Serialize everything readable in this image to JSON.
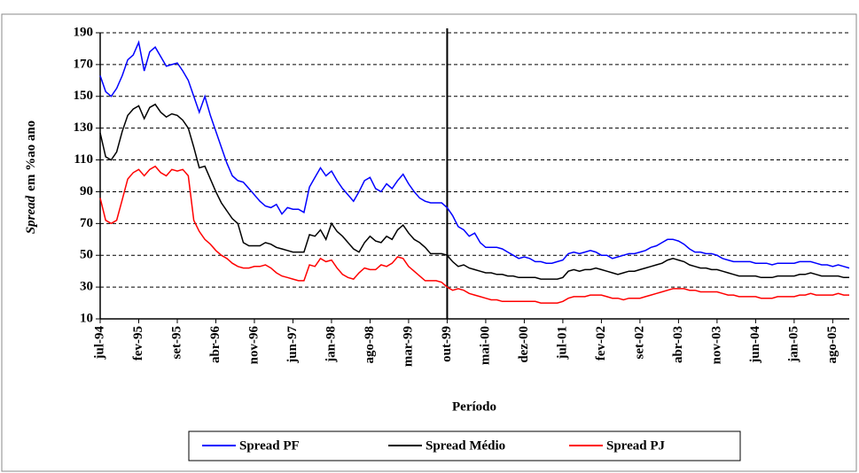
{
  "chart_data": {
    "type": "line",
    "y_label_italic": "Spread",
    "y_label": "em %ao ano",
    "x_label": "Período",
    "categories": [
      "jul-94",
      null,
      null,
      null,
      null,
      null,
      null,
      "fev-95",
      null,
      null,
      null,
      null,
      null,
      null,
      "set-95",
      null,
      null,
      null,
      null,
      null,
      null,
      "abr-96",
      null,
      null,
      null,
      null,
      null,
      null,
      "nov-96",
      null,
      null,
      null,
      null,
      null,
      null,
      "jun-97",
      null,
      null,
      null,
      null,
      null,
      null,
      "jan-98",
      null,
      null,
      null,
      null,
      null,
      null,
      "ago-98",
      null,
      null,
      null,
      null,
      null,
      null,
      "mar-99",
      null,
      null,
      null,
      null,
      null,
      null,
      "out-99",
      null,
      null,
      null,
      null,
      null,
      null,
      "mai-00",
      null,
      null,
      null,
      null,
      null,
      null,
      "dez-00",
      null,
      null,
      null,
      null,
      null,
      null,
      "jul-01",
      null,
      null,
      null,
      null,
      null,
      null,
      "fev-02",
      null,
      null,
      null,
      null,
      null,
      null,
      "set-02",
      null,
      null,
      null,
      null,
      null,
      null,
      "abr-03",
      null,
      null,
      null,
      null,
      null,
      null,
      "nov-03",
      null,
      null,
      null,
      null,
      null,
      null,
      "jun-04",
      null,
      null,
      null,
      null,
      null,
      null,
      "jan-05",
      null,
      null,
      null,
      null,
      null,
      null,
      "ago-05",
      null,
      null,
      null
    ],
    "series": [
      {
        "name": "Spread PF",
        "color": "#0000ff",
        "values": [
          163,
          153,
          150,
          155,
          163,
          173,
          176,
          184,
          166,
          178,
          181,
          175,
          169,
          170,
          171,
          166,
          160,
          150,
          140,
          150,
          138,
          128,
          118,
          108,
          100,
          97,
          96,
          92,
          88,
          84,
          81,
          80,
          82,
          76,
          80,
          79,
          79,
          77,
          93,
          99,
          105,
          100,
          103,
          97,
          92,
          88,
          84,
          90,
          97,
          99,
          92,
          90,
          95,
          92,
          97,
          101,
          95,
          90,
          86,
          84,
          83,
          83,
          83,
          80,
          75,
          68,
          66,
          62,
          64,
          58,
          55,
          55,
          55,
          54,
          52,
          50,
          48,
          49,
          48,
          46,
          46,
          45,
          45,
          46,
          47,
          51,
          52,
          51,
          52,
          53,
          52,
          50,
          50,
          48,
          49,
          50,
          51,
          51,
          52,
          53,
          55,
          56,
          58,
          60,
          60,
          59,
          57,
          54,
          52,
          52,
          51,
          51,
          50,
          48,
          47,
          46,
          46,
          46,
          46,
          45,
          45,
          45,
          44,
          45,
          45,
          45,
          45,
          46,
          46,
          46,
          45,
          44,
          44,
          43,
          44,
          43,
          42
        ]
      },
      {
        "name": "Spread Médio",
        "color": "#000000",
        "values": [
          127,
          112,
          110,
          115,
          128,
          138,
          142,
          144,
          136,
          143,
          145,
          140,
          137,
          139,
          138,
          135,
          130,
          118,
          105,
          106,
          98,
          90,
          83,
          78,
          73,
          70,
          58,
          56,
          56,
          56,
          58,
          57,
          55,
          54,
          53,
          52,
          52,
          52,
          63,
          62,
          66,
          60,
          70,
          65,
          62,
          58,
          54,
          52,
          58,
          62,
          59,
          58,
          62,
          60,
          66,
          69,
          64,
          60,
          58,
          55,
          51,
          51,
          51,
          50,
          46,
          43,
          44,
          42,
          41,
          40,
          39,
          39,
          38,
          38,
          37,
          37,
          36,
          36,
          36,
          36,
          35,
          35,
          35,
          35,
          36,
          40,
          41,
          40,
          41,
          41,
          42,
          41,
          40,
          39,
          38,
          39,
          40,
          40,
          41,
          42,
          43,
          44,
          45,
          47,
          48,
          47,
          46,
          44,
          43,
          42,
          42,
          41,
          41,
          40,
          39,
          38,
          37,
          37,
          37,
          37,
          36,
          36,
          36,
          37,
          37,
          37,
          37,
          38,
          38,
          39,
          38,
          37,
          37,
          37,
          37,
          36,
          36
        ]
      },
      {
        "name": "Spread PJ",
        "color": "#ff0000",
        "values": [
          86,
          72,
          70,
          72,
          85,
          98,
          102,
          104,
          100,
          104,
          106,
          102,
          100,
          104,
          103,
          104,
          100,
          72,
          65,
          60,
          57,
          53,
          50,
          48,
          45,
          43,
          42,
          42,
          43,
          43,
          44,
          42,
          39,
          37,
          36,
          35,
          34,
          34,
          44,
          43,
          48,
          46,
          47,
          42,
          38,
          36,
          35,
          39,
          42,
          41,
          41,
          44,
          43,
          45,
          49,
          48,
          43,
          40,
          37,
          34,
          34,
          34,
          33,
          30,
          28,
          29,
          28,
          26,
          25,
          24,
          23,
          22,
          22,
          21,
          21,
          21,
          21,
          21,
          21,
          21,
          20,
          20,
          20,
          20,
          21,
          23,
          24,
          24,
          24,
          25,
          25,
          25,
          24,
          23,
          23,
          22,
          23,
          23,
          23,
          24,
          25,
          26,
          27,
          28,
          29,
          29,
          29,
          28,
          28,
          27,
          27,
          27,
          27,
          26,
          25,
          25,
          24,
          24,
          24,
          24,
          23,
          23,
          23,
          24,
          24,
          24,
          24,
          25,
          25,
          26,
          25,
          25,
          25,
          25,
          26,
          25,
          25
        ]
      }
    ],
    "marker_line_index": 63,
    "ylim": [
      10,
      190
    ],
    "yticks": [
      10,
      30,
      50,
      70,
      90,
      110,
      130,
      150,
      170,
      190
    ],
    "grid": true
  }
}
